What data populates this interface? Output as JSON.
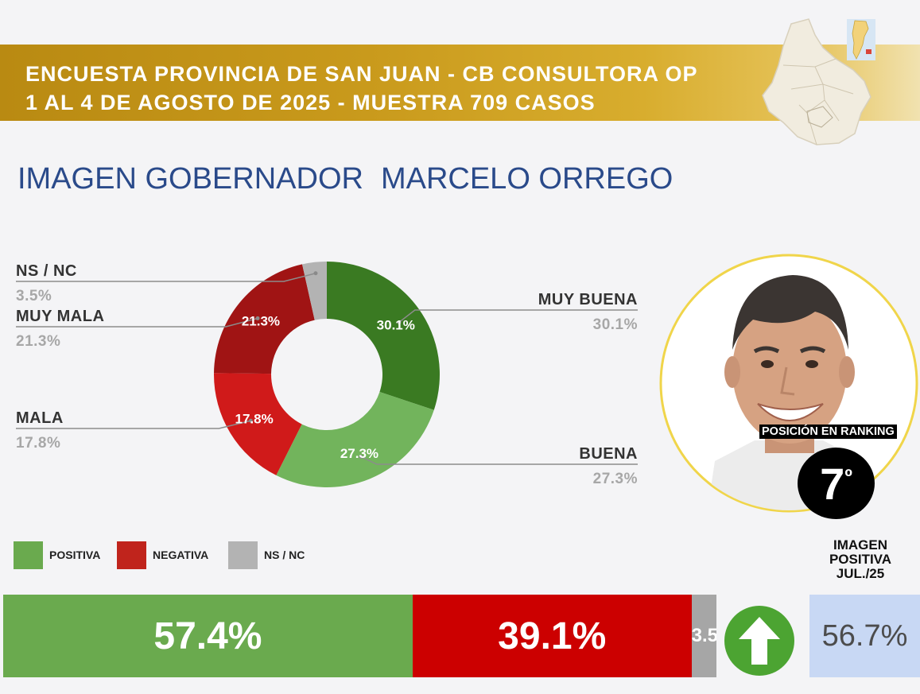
{
  "header": {
    "line1": "ENCUESTA PROVINCIA DE SAN JUAN - CB CONSULTORA OP",
    "line2": "1 AL 4 DE AGOSTO DE 2025 - MUESTRA 709 CASOS"
  },
  "title": {
    "part1": "IMAGEN GOBERNADOR",
    "part2": "MARCELO ORREGO"
  },
  "colors": {
    "muy_buena": "#3a7a22",
    "buena": "#72b45c",
    "mala": "#d01a1a",
    "muy_mala": "#a01414",
    "ns_nc": "#b3b3b3",
    "positiva": "#6aaa4e",
    "negativa": "#c0241c",
    "bar_ns": "#a6a6a6",
    "bar_positiva": "#6aaa4e",
    "bar_negativa": "#cc0000"
  },
  "chart_data": [
    {
      "type": "pie",
      "title": "IMAGEN GOBERNADOR MARCELO ORREGO",
      "slices": [
        {
          "key": "muy_buena",
          "name": "MUY BUENA",
          "value": 30.1,
          "label": "30.1%"
        },
        {
          "key": "buena",
          "name": "BUENA",
          "value": 27.3,
          "label": "27.3%"
        },
        {
          "key": "mala",
          "name": "MALA",
          "value": 17.8,
          "label": "17.8%"
        },
        {
          "key": "muy_mala",
          "name": "MUY MALA",
          "value": 21.3,
          "label": "21.3%"
        },
        {
          "key": "ns_nc",
          "name": "NS / NC",
          "value": 3.5,
          "label": "3.5%"
        }
      ]
    },
    {
      "type": "bar",
      "stacked": true,
      "orientation": "horizontal",
      "series": [
        {
          "name": "POSITIVA",
          "value": 57.4,
          "label": "57.4%"
        },
        {
          "name": "NEGATIVA",
          "value": 39.1,
          "label": "39.1%"
        },
        {
          "name": "NS / NC",
          "value": 3.5,
          "label": "3.5%"
        }
      ]
    }
  ],
  "legend": [
    {
      "label": "POSITIVA",
      "color": "#6aaa4e"
    },
    {
      "label": "NEGATIVA",
      "color": "#c0241c"
    },
    {
      "label": "NS / NC",
      "color": "#b3b3b3"
    }
  ],
  "ranking": {
    "label": "POSICIÓN EN RANKING",
    "position": "7",
    "suffix": "º"
  },
  "previous": {
    "label_line1": "IMAGEN",
    "label_line2": "POSITIVA",
    "label_line3": "JUL./25",
    "value": "56.7%",
    "trend": "up"
  },
  "icons": {
    "trend": "arrow-up-icon",
    "map": "san-juan-map-icon",
    "inset": "argentina-map-icon"
  }
}
